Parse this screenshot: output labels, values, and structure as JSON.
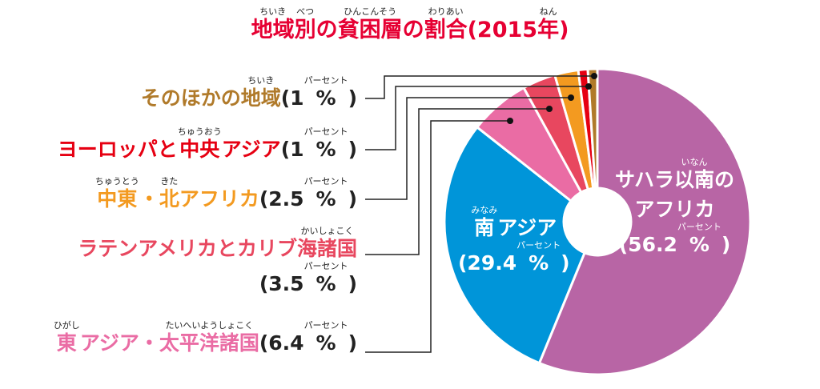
{
  "title": {
    "w1": "地域",
    "r1": "ちいき",
    "w2": "別",
    "r2": "べつ",
    "w3": "の",
    "w4": "貧困層",
    "r4": "ひんこんそう",
    "w5": "の",
    "w6": "割合",
    "r6": "わりあい",
    "w7": "(2015",
    "w8": "年",
    "r8": "ねん",
    "w9": ")"
  },
  "percent_ruby": "パーセント",
  "chart_data": {
    "type": "pie",
    "donut": true,
    "title": "地域別の貧困層の割合(2015年)",
    "categories": [
      "サハラ以南のアフリカ",
      "南アジア",
      "東アジア・太平洋諸国",
      "ラテンアメリカとカリブ海諸国",
      "中東・北アフリカ",
      "ヨーロッパと中央アジア",
      "そのほかの地域"
    ],
    "values": [
      56.2,
      29.4,
      6.4,
      3.5,
      2.5,
      1,
      1
    ],
    "unit": "%",
    "colors": [
      "#b865a5",
      "#0095d9",
      "#ea6ca4",
      "#e8475f",
      "#f39a20",
      "#e60012",
      "#b07a2a"
    ]
  },
  "labels": {
    "other": {
      "a": "そのほかの",
      "b": "地域",
      "br": "ちいき",
      "v": "(1 ",
      "pct": "%",
      "c": " )"
    },
    "europe": {
      "a": "ヨーロッパと",
      "b": "中央",
      "br": "ちゅうおう",
      "a2": "アジア",
      "v": "(1 ",
      "pct": "%",
      "c": " )"
    },
    "mena": {
      "b": "中東",
      "br": "ちゅうとう",
      "a": "・",
      "b2": "北",
      "br2": "きた",
      "a2": "アフリカ",
      "v": "(2.5 ",
      "pct": "%",
      "c": " )"
    },
    "latam": {
      "a": "ラテンアメリカとカリブ",
      "b": "海諸国",
      "br": "かいしょこく",
      "v": "(3.5 ",
      "pct": "%",
      "c": " )"
    },
    "eastasia": {
      "b": "東",
      "br": "ひがし",
      "a": "アジア・",
      "b2": "太平洋諸国",
      "br2": "たいへいようしょこく",
      "v": "(6.4 ",
      "pct": "%",
      "c": " )"
    },
    "ssa": {
      "a": "サハラ",
      "b": "以南",
      "br": "いなん",
      "a2": "の",
      "line2": "アフリカ",
      "v": "(56.2 ",
      "pct": "%",
      "c": " )"
    },
    "sasia": {
      "b": "南",
      "br": "みなみ",
      "a": "アジア",
      "v": "(29.4 ",
      "pct": "%",
      "c": " )"
    }
  }
}
